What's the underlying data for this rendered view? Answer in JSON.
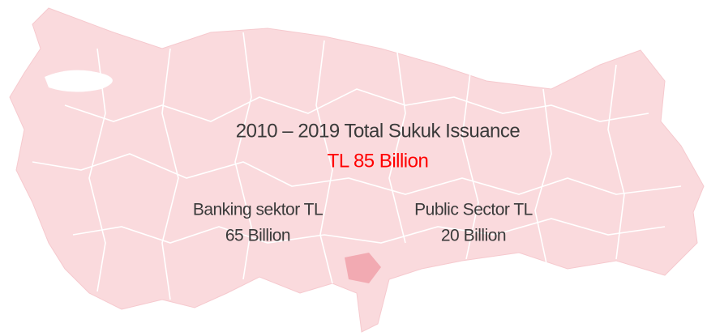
{
  "title": "2010 – 2019 Total Sukuk Issuance",
  "total": "TL 85 Billion",
  "sectors": [
    {
      "line1": "Banking sektor TL",
      "line2": "65 Billion"
    },
    {
      "line1": "Public Sector TL",
      "line2": "20 Billion"
    }
  ]
}
